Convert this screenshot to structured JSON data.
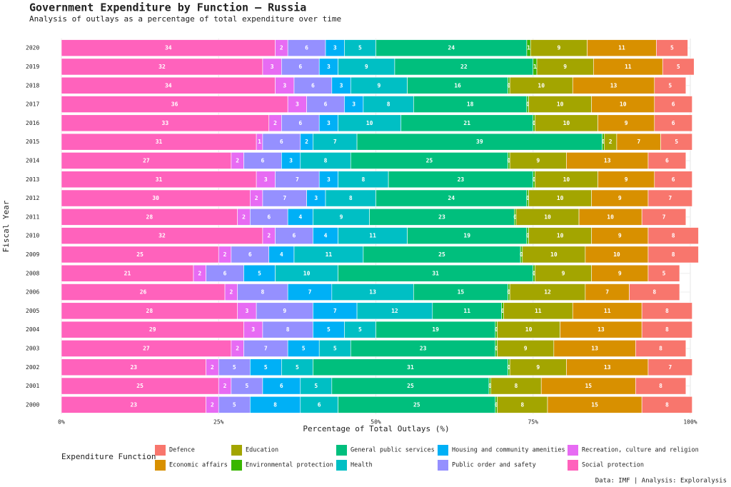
{
  "chart_data": {
    "type": "stacked_bar_horizontal",
    "title": "Government Expenditure by Function — Russia",
    "subtitle": "Analysis of outlays as a percentage of total expenditure over time",
    "x_label": "Percentage of Total Outlays (%)",
    "y_label": "Fiscal Year",
    "legend_title": "Expenditure Function",
    "caption": "Data: IMF | Analysis: Exploralysis",
    "categories": [
      "2000",
      "2001",
      "2002",
      "2003",
      "2004",
      "2005",
      "2006",
      "2008",
      "2009",
      "2010",
      "2011",
      "2012",
      "2013",
      "2014",
      "2015",
      "2016",
      "2017",
      "2018",
      "2019",
      "2020"
    ],
    "xlim": [
      0,
      100
    ],
    "xticks": [
      {
        "value": 0,
        "label": "0%"
      },
      {
        "value": 25,
        "label": "25%"
      },
      {
        "value": 50,
        "label": "50%"
      },
      {
        "value": 75,
        "label": "75%"
      },
      {
        "value": 100,
        "label": "100%"
      }
    ],
    "grid": true,
    "series": [
      {
        "name": "Defence",
        "color": "#F8766D",
        "values": [
          8,
          8,
          7,
          8,
          8,
          8,
          8,
          5,
          8,
          8,
          7,
          7,
          6,
          6,
          5,
          6,
          6,
          5,
          5,
          5
        ]
      },
      {
        "name": "Economic affairs",
        "color": "#D89000",
        "values": [
          15,
          15,
          13,
          13,
          13,
          11,
          7,
          9,
          10,
          9,
          10,
          9,
          9,
          13,
          7,
          9,
          10,
          13,
          11,
          11
        ]
      },
      {
        "name": "Education",
        "color": "#A3A500",
        "values": [
          8,
          8,
          9,
          9,
          10,
          11,
          12,
          9,
          10,
          10,
          10,
          10,
          10,
          9,
          2,
          10,
          10,
          10,
          9,
          9
        ]
      },
      {
        "name": "Environmental protection",
        "color": "#39B600",
        "values": [
          0.3,
          0.3,
          0.3,
          0.3,
          0.3,
          0.3,
          0.3,
          0.3,
          0.3,
          0.3,
          0.3,
          0.3,
          0.3,
          0.3,
          0.3,
          0.3,
          0.3,
          0.3,
          0.6,
          0.6
        ],
        "value_labels": [
          "0",
          "0",
          "0",
          "0",
          "0",
          "0",
          "0",
          "0",
          "0",
          "0",
          "0",
          "0",
          "0",
          "0",
          "0",
          "0",
          "0",
          "0",
          "1",
          "1"
        ]
      },
      {
        "name": "General public services",
        "color": "#00BF7D",
        "values": [
          25,
          25,
          31,
          23,
          19,
          11,
          15,
          31,
          25,
          19,
          23,
          24,
          23,
          25,
          39,
          21,
          18,
          16,
          22,
          24
        ]
      },
      {
        "name": "Health",
        "color": "#00BFC4",
        "values": [
          6,
          5,
          5,
          5,
          5,
          12,
          13,
          10,
          11,
          11,
          9,
          8,
          8,
          8,
          7,
          10,
          8,
          9,
          9,
          5
        ]
      },
      {
        "name": "Housing and community amenities",
        "color": "#00B0F6",
        "values": [
          8,
          6,
          5,
          5,
          5,
          7,
          7,
          5,
          4,
          4,
          4,
          3,
          3,
          3,
          2,
          3,
          3,
          3,
          3,
          3
        ]
      },
      {
        "name": "Public order and safety",
        "color": "#9590FF",
        "values": [
          5,
          5,
          5,
          7,
          8,
          9,
          8,
          6,
          6,
          6,
          6,
          7,
          7,
          6,
          6,
          6,
          6,
          6,
          6,
          6
        ]
      },
      {
        "name": "Recreation, culture and religion",
        "color": "#E76BF3",
        "values": [
          2,
          2,
          2,
          2,
          3,
          3,
          2,
          2,
          2,
          2,
          2,
          2,
          3,
          2,
          1,
          2,
          3,
          3,
          3,
          2
        ]
      },
      {
        "name": "Social protection",
        "color": "#FF62BC",
        "values": [
          23,
          25,
          23,
          27,
          29,
          28,
          26,
          21,
          25,
          32,
          28,
          30,
          31,
          27,
          31,
          33,
          36,
          34,
          32,
          34
        ]
      }
    ]
  }
}
